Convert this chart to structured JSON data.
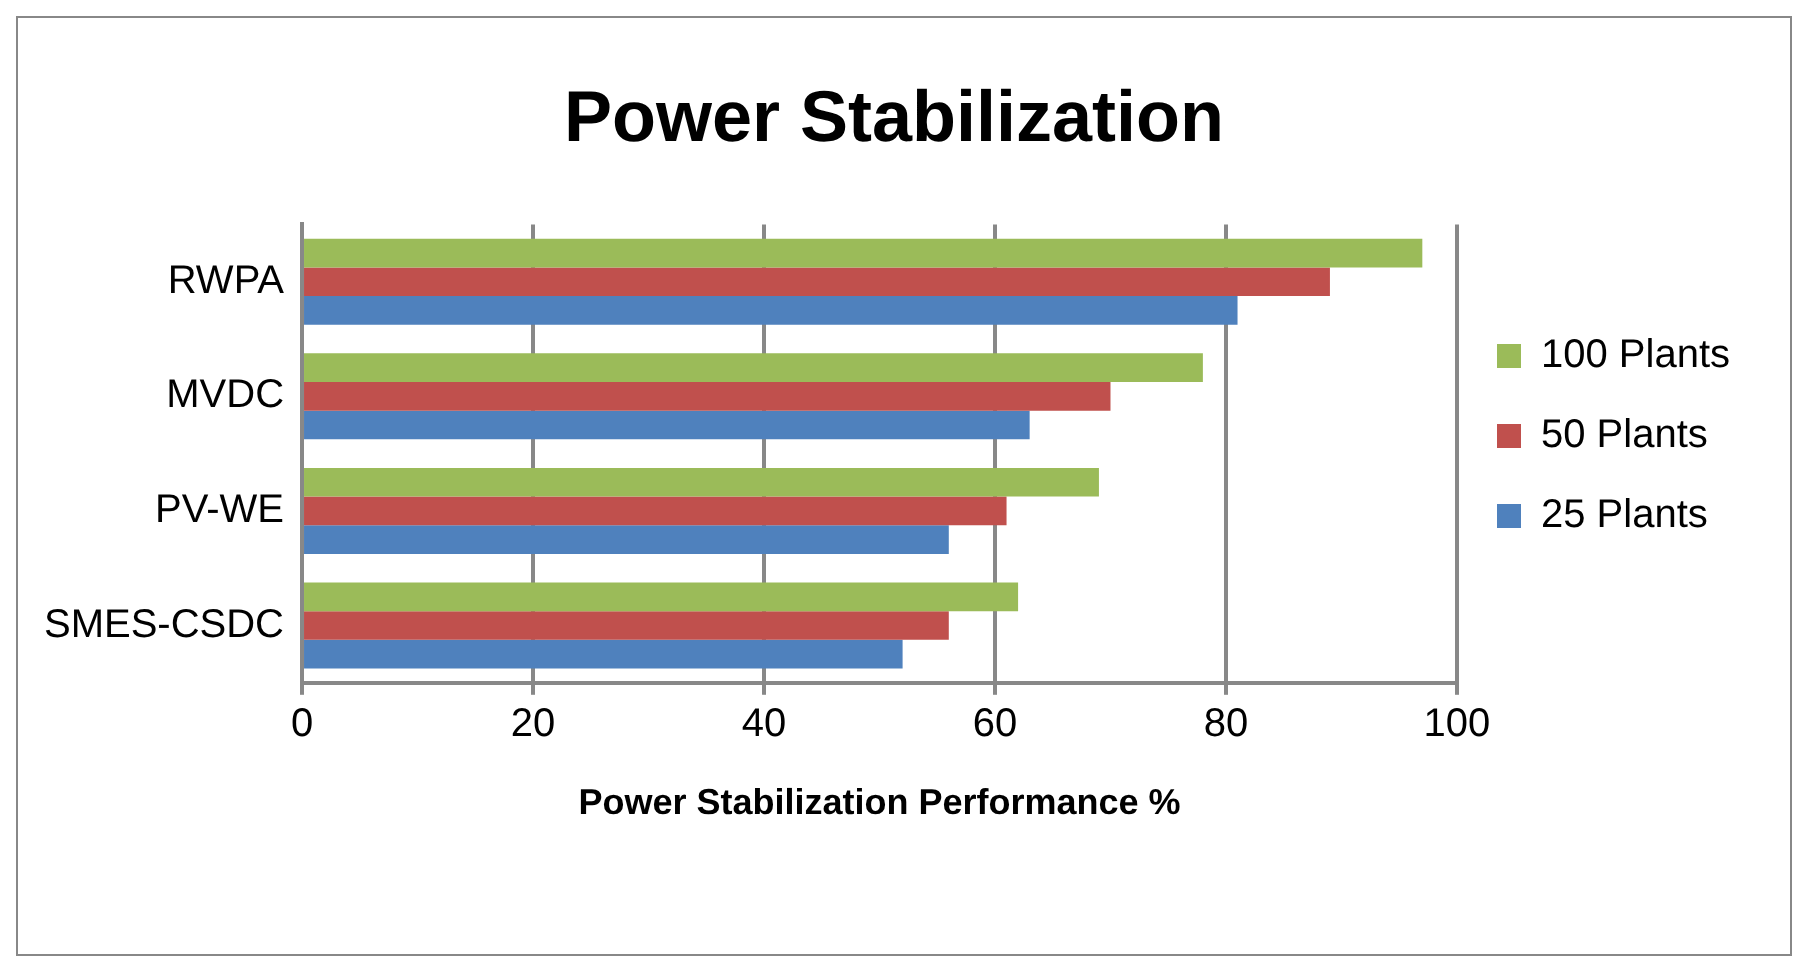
{
  "chart_data": {
    "type": "bar",
    "orientation": "horizontal",
    "title": "Power Stabilization",
    "xlabel": "Power Stabilization Performance %",
    "categories": [
      "RWPA",
      "MVDC",
      "PV-WE",
      "SMES-CSDC"
    ],
    "series": [
      {
        "name": "100 Plants",
        "color": "#9bbb59",
        "values": [
          97,
          78,
          69,
          62
        ]
      },
      {
        "name": "50 Plants",
        "color": "#c0504d",
        "values": [
          89,
          70,
          61,
          56
        ]
      },
      {
        "name": "25 Plants",
        "color": "#4f81bd",
        "values": [
          81,
          63,
          56,
          52
        ]
      }
    ],
    "xlim": [
      0,
      100
    ],
    "xticks": [
      0,
      20,
      40,
      60,
      80,
      100
    ],
    "grid": "x",
    "legend": "right"
  }
}
